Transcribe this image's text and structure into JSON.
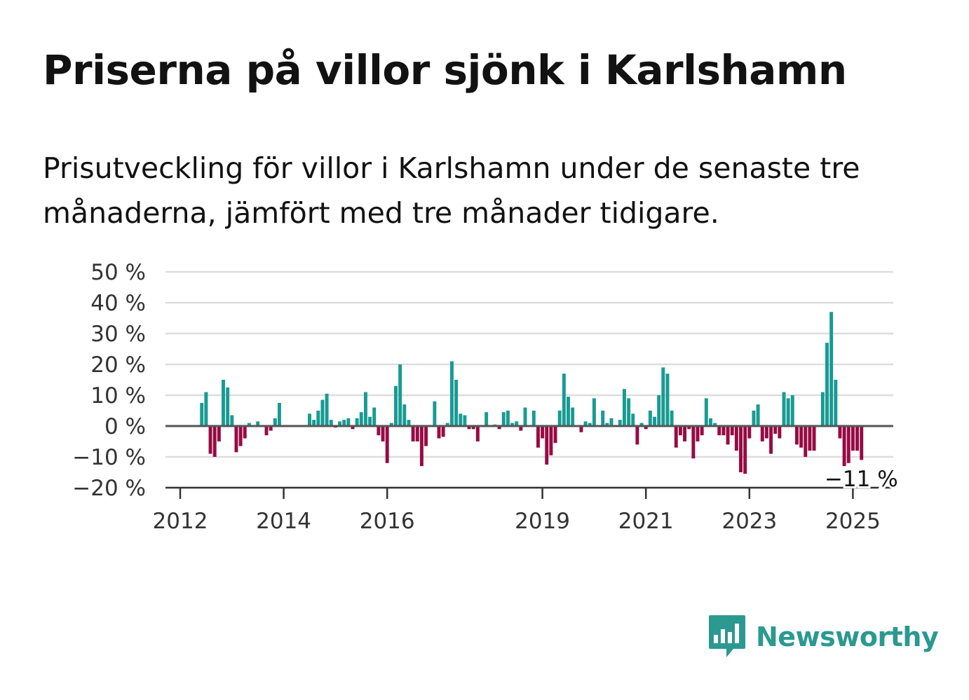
{
  "title": "Priserna på villor sjönk i Karlshamn",
  "subtitle": "Prisutveckling för villor i Karlshamn under de senaste tre månaderna, jämfört med tre månader tidigare.",
  "brand": {
    "name": "Newsworthy"
  },
  "colors": {
    "positive": "#189b93",
    "negative": "#970b43",
    "grid": "#dddddd",
    "zero_line": "#555555",
    "brand": "#2b9990"
  },
  "chart_data": {
    "type": "bar",
    "ylim": [
      -20,
      50
    ],
    "yticks": [
      50,
      40,
      30,
      20,
      10,
      0,
      -10,
      -20
    ],
    "ytick_labels": [
      "50 %",
      "40 %",
      "30 %",
      "20 %",
      "10 %",
      "0 %",
      "−10 %",
      "−20 %"
    ],
    "xticks": [
      2012,
      2014,
      2016,
      2019,
      2021,
      2023,
      2025
    ],
    "xtick_labels": [
      "2012",
      "2014",
      "2016",
      "2019",
      "2021",
      "2023",
      "2025"
    ],
    "x_start": 2012.0,
    "values": [
      null,
      null,
      null,
      null,
      null,
      7.5,
      11.0,
      -9.0,
      -10.0,
      -5.0,
      15.0,
      12.5,
      3.5,
      -8.5,
      -6.5,
      -4.0,
      1.0,
      0.0,
      1.5,
      0.0,
      -3.0,
      -1.5,
      2.5,
      7.5,
      null,
      null,
      null,
      null,
      null,
      null,
      4.0,
      2.0,
      5.0,
      8.5,
      10.5,
      2.0,
      -0.5,
      1.5,
      2.0,
      2.5,
      -1.0,
      2.5,
      4.5,
      11.0,
      3.0,
      6.0,
      -3.0,
      -5.0,
      -12.0,
      1.0,
      13.0,
      20.0,
      7.0,
      2.0,
      -5.0,
      -5.0,
      -13.0,
      -6.5,
      0.0,
      8.0,
      -4.0,
      -3.5,
      1.0,
      21.0,
      15.0,
      4.0,
      3.5,
      -1.0,
      -1.0,
      -5.0,
      0.0,
      4.5,
      0.0,
      0.5,
      -1.0,
      4.5,
      5.0,
      1.0,
      1.5,
      -1.5,
      6.0,
      0.0,
      5.0,
      -7.0,
      -4.0,
      -12.5,
      -9.5,
      -5.5,
      5.0,
      17.0,
      9.5,
      6.0,
      0.0,
      -2.0,
      1.5,
      1.0,
      9.0,
      0.0,
      5.0,
      1.0,
      2.5,
      0.0,
      2.0,
      12.0,
      9.0,
      4.0,
      -6.0,
      1.0,
      -1.0,
      5.0,
      3.0,
      10.0,
      19.0,
      17.0,
      5.0,
      -7.0,
      -3.0,
      -5.0,
      -1.0,
      -10.5,
      -5.0,
      -3.0,
      9.0,
      2.5,
      1.0,
      -3.0,
      -3.0,
      -6.0,
      -3.0,
      -8.0,
      -15.0,
      -15.5,
      -4.0,
      5.0,
      7.0,
      -5.0,
      -4.0,
      -9.0,
      -2.5,
      -4.0,
      11.0,
      9.0,
      10.0,
      -6.0,
      -7.0,
      -10.0,
      -8.0,
      -8.0,
      0.0,
      11.0,
      27.0,
      37.0,
      15.0,
      -4.0,
      -13.0,
      -12.0,
      -8.0,
      -8.0,
      -11.0
    ],
    "end_label": "−11 %"
  }
}
